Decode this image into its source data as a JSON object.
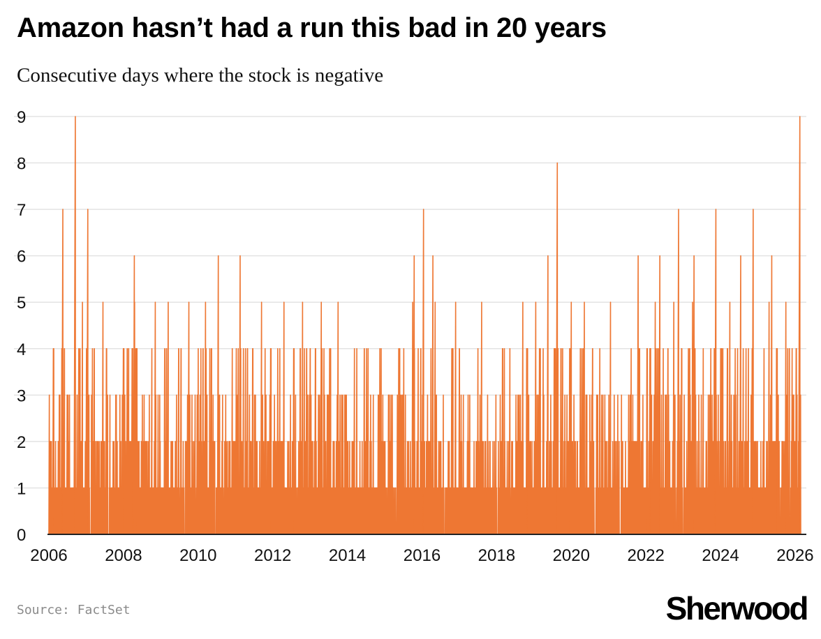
{
  "header": {
    "title": "Amazon hasn’t had a run this bad in 20 years",
    "subtitle": "Consecutive days where the stock is negative"
  },
  "footer": {
    "source": "Source: FactSet",
    "brand": "Sherwood"
  },
  "colors": {
    "series": "#EE7733",
    "grid": "#e3e3e3",
    "axis": "#222222",
    "text": "#111111"
  },
  "chart_data": {
    "type": "area",
    "title": "Amazon hasn’t had a run this bad in 20 years",
    "subtitle": "Consecutive days where the stock is negative",
    "xlabel": "",
    "ylabel": "",
    "xlim": [
      2006,
      2026.3
    ],
    "ylim": [
      0,
      9
    ],
    "grid": true,
    "legend": "none",
    "x_ticks": [
      "2006",
      "2008",
      "2010",
      "2012",
      "2014",
      "2016",
      "2018",
      "2020",
      "2022",
      "2024",
      "2026"
    ],
    "y_ticks": [
      "0",
      "1",
      "2",
      "3",
      "4",
      "5",
      "6",
      "7",
      "8",
      "9"
    ],
    "peaks": [
      {
        "x": "2006-05",
        "y": 7
      },
      {
        "x": "2006-09",
        "y": 9
      },
      {
        "x": "2007-01",
        "y": 7
      },
      {
        "x": "2008-04",
        "y": 6
      },
      {
        "x": "2010-07",
        "y": 6
      },
      {
        "x": "2011-02",
        "y": 6
      },
      {
        "x": "2016-01",
        "y": 7
      },
      {
        "x": "2015-10",
        "y": 6
      },
      {
        "x": "2016-04",
        "y": 6
      },
      {
        "x": "2019-05",
        "y": 6
      },
      {
        "x": "2019-08",
        "y": 8
      },
      {
        "x": "2021-10",
        "y": 6
      },
      {
        "x": "2022-05",
        "y": 6
      },
      {
        "x": "2022-11",
        "y": 7
      },
      {
        "x": "2023-04",
        "y": 6
      },
      {
        "x": "2023-11",
        "y": 7
      },
      {
        "x": "2024-07",
        "y": 6
      },
      {
        "x": "2024-11",
        "y": 7
      },
      {
        "x": "2025-05",
        "y": 6
      },
      {
        "x": "2026-02",
        "y": 9
      }
    ],
    "five_day_runs": [
      2006.35,
      2006.9,
      2007.45,
      2008.3,
      2008.85,
      2009.2,
      2009.75,
      2010.2,
      2011.7,
      2012.3,
      2012.8,
      2013.3,
      2013.75,
      2015.75,
      2016.35,
      2016.9,
      2017.6,
      2018.7,
      2019.05,
      2020.0,
      2020.35,
      2021.05,
      2022.25,
      2022.75,
      2023.25,
      2024.25,
      2024.85,
      2025.3,
      2025.75
    ],
    "series": [
      {
        "values_description_omitted": true
      }
    ]
  }
}
